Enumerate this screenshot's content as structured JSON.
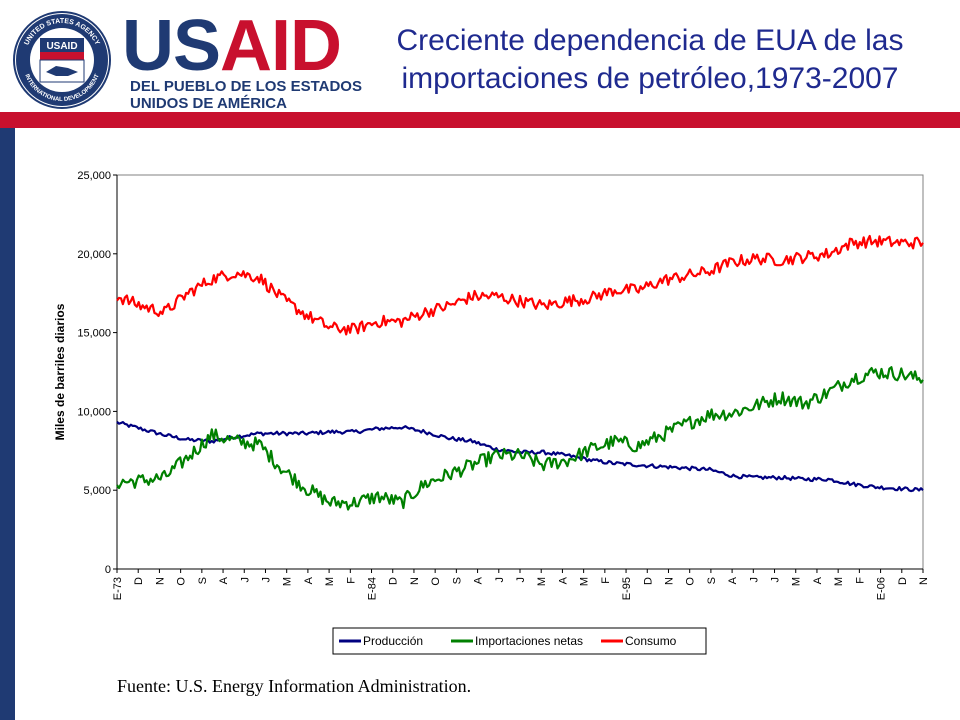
{
  "header": {
    "logo_title": "USAID",
    "logo_subtitle_1": "DEL PUEBLO DE LOS ESTADOS",
    "logo_subtitle_2": "UNIDOS DE AMÉRICA",
    "seal_text_top": "UNITED STATES AGENCY",
    "seal_text_bottom": "INTERNATIONAL DEVELOPMENT",
    "seal_center": "USAID"
  },
  "title_line1": "Creciente dependencia de EUA de las",
  "title_line2": "importaciones de petróleo,1973-2007",
  "source": "Fuente: U.S. Energy Information Administration.",
  "colors": {
    "navy": "#1f3a73",
    "red": "#c8102e",
    "title": "#1f2a8f",
    "produccion": "#000080",
    "importaciones": "#008000",
    "consumo": "#ff0000"
  },
  "chart_data": {
    "type": "line",
    "title": "",
    "xlabel": "",
    "ylabel": "Miles de barriles diarios",
    "ylim": [
      0,
      25000
    ],
    "yticks": [
      "0",
      "5,000",
      "10,000",
      "15,000",
      "20,000",
      "25,000"
    ],
    "x_tick_labels": [
      "E-73",
      "D",
      "N",
      "O",
      "S",
      "A",
      "J",
      "J",
      "M",
      "A",
      "M",
      "F",
      "E-84",
      "D",
      "N",
      "O",
      "S",
      "A",
      "J",
      "J",
      "M",
      "A",
      "M",
      "F",
      "E-95",
      "D",
      "N",
      "O",
      "S",
      "A",
      "J",
      "J",
      "M",
      "A",
      "M",
      "F",
      "E-06",
      "D",
      "N"
    ],
    "grid": false,
    "legend": "bottom",
    "x": [
      1973,
      1974,
      1975,
      1976,
      1977,
      1978,
      1979,
      1980,
      1981,
      1982,
      1983,
      1984,
      1985,
      1986,
      1987,
      1988,
      1989,
      1990,
      1991,
      1992,
      1993,
      1994,
      1995,
      1996,
      1997,
      1998,
      1999,
      2000,
      2001,
      2002,
      2003,
      2004,
      2005,
      2006,
      2007
    ],
    "series": [
      {
        "name": "Producción",
        "color": "#000080",
        "values": [
          9300,
          8900,
          8500,
          8200,
          8100,
          8400,
          8600,
          8600,
          8600,
          8700,
          8700,
          8900,
          9000,
          8700,
          8300,
          8100,
          7600,
          7400,
          7400,
          7200,
          6900,
          6700,
          6600,
          6500,
          6400,
          6300,
          5900,
          5800,
          5800,
          5700,
          5700,
          5400,
          5200,
          5100,
          5000
        ]
      },
      {
        "name": "Importaciones netas",
        "color": "#008000",
        "values": [
          5500,
          5600,
          5800,
          7100,
          8500,
          8100,
          7900,
          6300,
          5100,
          4200,
          4200,
          4600,
          4200,
          5400,
          6000,
          6600,
          7200,
          7200,
          6600,
          6900,
          7600,
          8100,
          7800,
          8500,
          9200,
          9800,
          9900,
          10400,
          10900,
          10500,
          11200,
          12100,
          12500,
          12400,
          12000
        ]
      },
      {
        "name": "Consumo",
        "color": "#ff0000",
        "values": [
          17300,
          16700,
          16300,
          17500,
          18400,
          18800,
          18500,
          17100,
          16100,
          15300,
          15200,
          15700,
          15700,
          16300,
          16700,
          17300,
          17300,
          17000,
          16700,
          17000,
          17200,
          17700,
          17700,
          18300,
          18600,
          18900,
          19500,
          19700,
          19600,
          19800,
          20000,
          20700,
          20800,
          20700,
          20700
        ]
      }
    ]
  }
}
